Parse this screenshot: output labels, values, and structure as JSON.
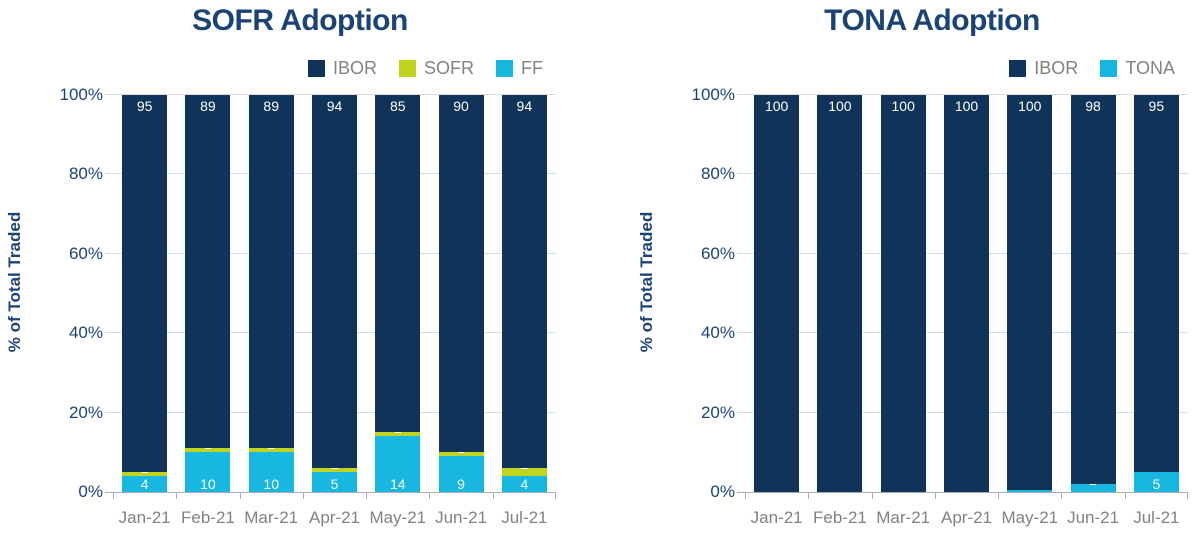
{
  "colors": {
    "ibor_navy": "#103459",
    "sofr_green": "#BED41E",
    "reference_cyan": "#17B7E2",
    "navy_text": "#1B4476",
    "gray_text": "#808285",
    "gridline_gray": "#D9DADB",
    "axis_gray": "#ABADB0",
    "bar_label_white": "#ffffff"
  },
  "chart_data": [
    {
      "type": "bar",
      "variant": "stacked-100-percent",
      "title": "SOFR Adoption",
      "ylabel": "% of Total Traded",
      "xlabel": "",
      "grid": true,
      "legend_position": "top-right",
      "ylim": [
        0,
        100
      ],
      "ytick_values": [
        0,
        20,
        40,
        60,
        80,
        100
      ],
      "ytick_labels": [
        "0%",
        "20%",
        "40%",
        "60%",
        "80%",
        "100%"
      ],
      "categories": [
        "Jan-21",
        "Feb-21",
        "Mar-21",
        "Apr-21",
        "May-21",
        "Jun-21",
        "Jul-21"
      ],
      "series": [
        {
          "name": "IBOR",
          "color": "#103459",
          "values": [
            95,
            89,
            89,
            94,
            85,
            90,
            94
          ],
          "labels": [
            "95",
            "89",
            "89",
            "94",
            "85",
            "90",
            "94"
          ]
        },
        {
          "name": "SOFR",
          "color": "#BED41E",
          "values": [
            1,
            1,
            1,
            1,
            1,
            1,
            2
          ],
          "labels": [
            "1",
            "1",
            "1",
            "1",
            "1",
            "1",
            "2"
          ]
        },
        {
          "name": "FF",
          "color": "#17B7E2",
          "values": [
            4,
            10,
            10,
            5,
            14,
            9,
            4
          ],
          "labels": [
            "4",
            "10",
            "10",
            "5",
            "14",
            "9",
            "4"
          ]
        }
      ],
      "stack_order_bottom_to_top": [
        "FF",
        "SOFR",
        "IBOR"
      ]
    },
    {
      "type": "bar",
      "variant": "stacked-100-percent",
      "title": "TONA Adoption",
      "ylabel": "% of Total Traded",
      "xlabel": "",
      "grid": true,
      "legend_position": "top-right",
      "ylim": [
        0,
        100
      ],
      "ytick_values": [
        0,
        20,
        40,
        60,
        80,
        100
      ],
      "ytick_labels": [
        "0%",
        "20%",
        "40%",
        "60%",
        "80%",
        "100%"
      ],
      "categories": [
        "Jan-21",
        "Feb-21",
        "Mar-21",
        "Apr-21",
        "May-21",
        "Jun-21",
        "Jul-21"
      ],
      "series": [
        {
          "name": "IBOR",
          "color": "#103459",
          "values": [
            100,
            100,
            100,
            100,
            100,
            98,
            95
          ],
          "labels": [
            "100",
            "100",
            "100",
            "100",
            "100",
            "98",
            "95"
          ]
        },
        {
          "name": "TONA",
          "color": "#17B7E2",
          "values": [
            0,
            0,
            0,
            0,
            0.5,
            2,
            5
          ],
          "labels": [
            "",
            "",
            "",
            "",
            "",
            "2",
            "5"
          ]
        }
      ],
      "stack_order_bottom_to_top": [
        "TONA",
        "IBOR"
      ]
    }
  ]
}
